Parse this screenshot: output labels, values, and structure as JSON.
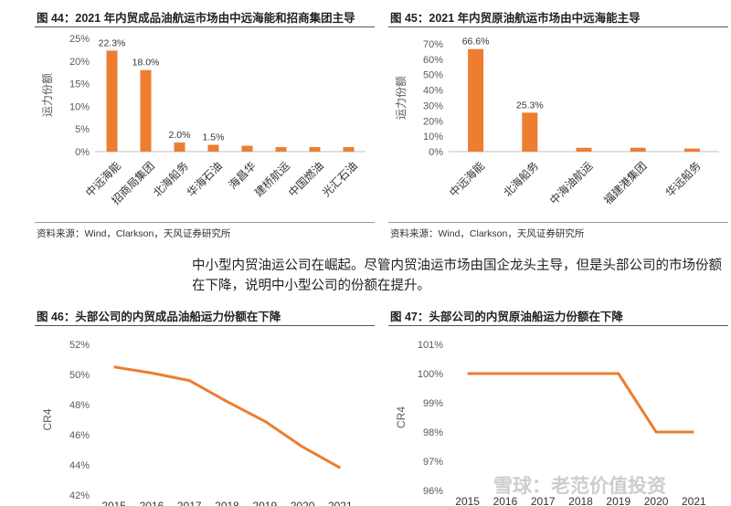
{
  "paragraph": "中小型内贸油运公司在崛起。尽管内贸油运市场由国企龙头主导，但是头部公司的市场份额在下降，说明中小型公司的份额在提升。",
  "watermark": "雪球：老范价值投资",
  "colors": {
    "bar": "#ED7D31",
    "line": "#ED7D31",
    "axis": "#BFBFBF",
    "text": "#595959"
  },
  "figures": [
    {
      "title": "图 44：2021 年内贸成品油航运市场由中远海能和招商集团主导",
      "source": "资料来源：Wind，Clarkson，天风证券研究所"
    },
    {
      "title": "图 45：2021 年内贸原油航运市场由中远海能主导",
      "source": "资料来源：Wind，Clarkson，天风证券研究所"
    },
    {
      "title": "图 46：头部公司的内贸成品油船运力份额在下降"
    },
    {
      "title": "图 47：头部公司的内贸原油船运力份额在下降"
    }
  ],
  "chart_data": [
    {
      "type": "bar",
      "categories": [
        "中远海能",
        "招商局集团",
        "北海船务",
        "华海石油",
        "海昌华",
        "建桥航运",
        "中国燃油",
        "光汇石油"
      ],
      "values": [
        22.3,
        18.0,
        2.0,
        1.5,
        1.3,
        1.0,
        1.0,
        1.0
      ],
      "data_labels": [
        "22.3%",
        "18.0%",
        "2.0%",
        "1.5%",
        "",
        "",
        "",
        ""
      ],
      "ylabel": "运力份额",
      "ylim": [
        0,
        25
      ],
      "yticks": [
        "0%",
        "5%",
        "10%",
        "15%",
        "20%",
        "25%"
      ]
    },
    {
      "type": "bar",
      "categories": [
        "中远海能",
        "北海船务",
        "中海油航运",
        "福建港集团",
        "华远船务"
      ],
      "values": [
        66.6,
        25.3,
        2.5,
        2.5,
        2.0
      ],
      "data_labels": [
        "66.6%",
        "25.3%",
        "",
        "",
        ""
      ],
      "ylabel": "运力份额",
      "ylim": [
        0,
        70
      ],
      "yticks": [
        "0%",
        "10%",
        "20%",
        "30%",
        "40%",
        "50%",
        "60%",
        "70%"
      ]
    },
    {
      "type": "line",
      "x": [
        "2015",
        "2016",
        "2017",
        "2018",
        "2019",
        "2020",
        "2021"
      ],
      "values": [
        50.5,
        50.1,
        49.6,
        48.2,
        46.9,
        45.2,
        43.8
      ],
      "ylabel": "CR4",
      "ylim": [
        42,
        52
      ],
      "yticks": [
        "42%",
        "44%",
        "46%",
        "48%",
        "50%",
        "52%"
      ]
    },
    {
      "type": "line",
      "x": [
        "2015",
        "2016",
        "2017",
        "2018",
        "2019",
        "2020",
        "2021"
      ],
      "values": [
        100,
        100,
        100,
        100,
        100,
        98,
        98
      ],
      "ylabel": "CR4",
      "ylim": [
        96,
        101
      ],
      "yticks": [
        "96%",
        "97%",
        "98%",
        "99%",
        "100%",
        "101%"
      ]
    }
  ]
}
